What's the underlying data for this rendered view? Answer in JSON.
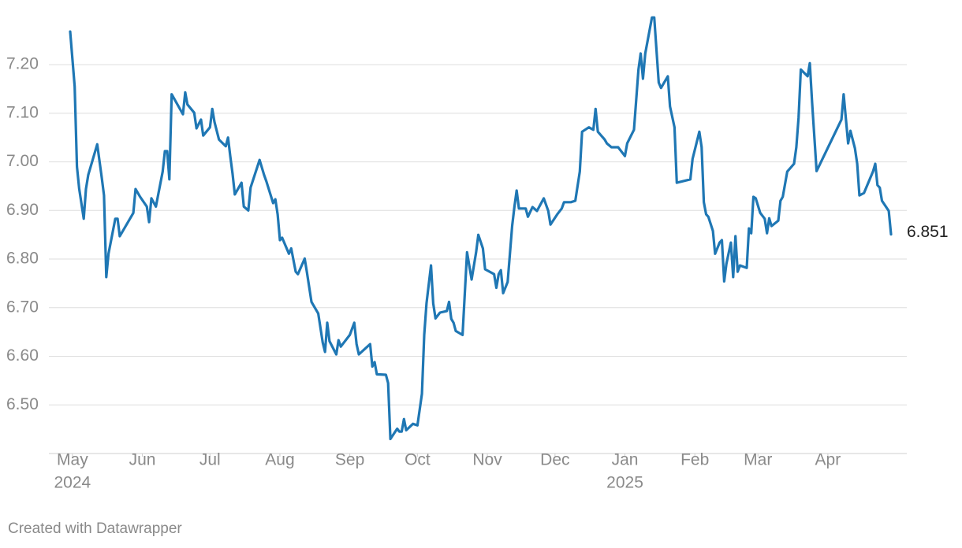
{
  "chart_data": {
    "type": "line",
    "color": "#1f77b4",
    "grid": true,
    "footer": "Created with Datawrapper",
    "xlim": [
      0,
      371
    ],
    "xticks": [
      {
        "value": 1,
        "label": "May"
      },
      {
        "value": 32,
        "label": "Jun"
      },
      {
        "value": 62,
        "label": "Jul"
      },
      {
        "value": 93,
        "label": "Aug"
      },
      {
        "value": 124,
        "label": "Sep"
      },
      {
        "value": 154,
        "label": "Oct"
      },
      {
        "value": 185,
        "label": "Nov"
      },
      {
        "value": 215,
        "label": "Dec"
      },
      {
        "value": 246,
        "label": "Jan"
      },
      {
        "value": 277,
        "label": "Feb"
      },
      {
        "value": 305,
        "label": "Mar"
      },
      {
        "value": 336,
        "label": "Apr"
      }
    ],
    "year_labels": [
      {
        "value": 1,
        "label": "2024"
      },
      {
        "value": 246,
        "label": "2025"
      }
    ],
    "ylim": [
      6.4,
      7.32
    ],
    "yticks": [
      {
        "value": 6.5,
        "label": "6.50"
      },
      {
        "value": 6.6,
        "label": "6.60"
      },
      {
        "value": 6.7,
        "label": "6.70"
      },
      {
        "value": 6.8,
        "label": "6.80"
      },
      {
        "value": 6.9,
        "label": "6.90"
      },
      {
        "value": 7.0,
        "label": "7.00"
      },
      {
        "value": 7.1,
        "label": "7.10"
      },
      {
        "value": 7.2,
        "label": "7.20"
      }
    ],
    "x": [
      0,
      2,
      3,
      4,
      6,
      7,
      8,
      12,
      14,
      15,
      16,
      17,
      20,
      21,
      22,
      28,
      29,
      31,
      34,
      35,
      36,
      38,
      41,
      42,
      43,
      44,
      45,
      50,
      51,
      52,
      55,
      56,
      58,
      59,
      62,
      63,
      64,
      66,
      69,
      70,
      71,
      72,
      73,
      76,
      77,
      79,
      80,
      84,
      86,
      87,
      90,
      91,
      92,
      93,
      94,
      97,
      98,
      100,
      101,
      104,
      105,
      107,
      110,
      112,
      113,
      114,
      115,
      118,
      119,
      120,
      124,
      126,
      127,
      128,
      133,
      134,
      135,
      136,
      140,
      141,
      142,
      145,
      146,
      147,
      148,
      149,
      152,
      154,
      156,
      157,
      158,
      160,
      161,
      162,
      164,
      167,
      168,
      169,
      170,
      171,
      174,
      176,
      178,
      180,
      181,
      183,
      184,
      188,
      189,
      190,
      191,
      192,
      194,
      196,
      197,
      198,
      199,
      202,
      203,
      205,
      207,
      210,
      212,
      213,
      216,
      218,
      219,
      222,
      224,
      226,
      227,
      230,
      232,
      233,
      234,
      237,
      238,
      240,
      243,
      246,
      247,
      250,
      252,
      253,
      254,
      255,
      258,
      259,
      261,
      262,
      265,
      266,
      268,
      269,
      275,
      276,
      279,
      280,
      281,
      282,
      283,
      285,
      286,
      288,
      289,
      290,
      291,
      293,
      294,
      295,
      296,
      297,
      300,
      301,
      302,
      303,
      304,
      306,
      308,
      309,
      310,
      311,
      314,
      315,
      316,
      318,
      321,
      322,
      323,
      324,
      327,
      328,
      329,
      331,
      342,
      343,
      345,
      346,
      348,
      349,
      350,
      352,
      356,
      357,
      358,
      359,
      360,
      363,
      364
    ],
    "values": [
      7.268,
      7.155,
      6.99,
      6.945,
      6.883,
      6.944,
      6.973,
      7.036,
      6.968,
      6.931,
      6.763,
      6.811,
      6.883,
      6.883,
      6.847,
      6.895,
      6.944,
      6.928,
      6.908,
      6.876,
      6.925,
      6.908,
      6.98,
      7.022,
      7.022,
      6.964,
      7.139,
      7.098,
      7.143,
      7.118,
      7.101,
      7.069,
      7.087,
      7.054,
      7.071,
      7.109,
      7.082,
      7.046,
      7.032,
      7.05,
      7.012,
      6.976,
      6.933,
      6.957,
      6.908,
      6.9,
      6.947,
      7.004,
      6.973,
      6.96,
      6.915,
      6.923,
      6.892,
      6.839,
      6.844,
      6.811,
      6.822,
      6.774,
      6.769,
      6.801,
      6.772,
      6.712,
      6.688,
      6.628,
      6.609,
      6.669,
      6.631,
      6.604,
      6.633,
      6.62,
      6.644,
      6.669,
      6.625,
      6.604,
      6.625,
      6.579,
      6.588,
      6.563,
      6.562,
      6.545,
      6.43,
      6.451,
      6.445,
      6.445,
      6.471,
      6.448,
      6.461,
      6.458,
      6.523,
      6.644,
      6.709,
      6.787,
      6.709,
      6.678,
      6.69,
      6.693,
      6.712,
      6.677,
      6.669,
      6.652,
      6.644,
      6.814,
      6.758,
      6.814,
      6.85,
      6.822,
      6.779,
      6.769,
      6.741,
      6.769,
      6.777,
      6.73,
      6.753,
      6.868,
      6.908,
      6.941,
      6.904,
      6.904,
      6.887,
      6.907,
      6.899,
      6.925,
      6.899,
      6.871,
      6.892,
      6.904,
      6.917,
      6.917,
      6.92,
      6.98,
      7.062,
      7.071,
      7.066,
      7.109,
      7.062,
      7.046,
      7.038,
      7.03,
      7.03,
      7.012,
      7.038,
      7.066,
      7.19,
      7.223,
      7.171,
      7.223,
      7.297,
      7.297,
      7.163,
      7.152,
      7.176,
      7.114,
      7.071,
      6.957,
      6.964,
      7.006,
      7.062,
      7.03,
      6.917,
      6.892,
      6.887,
      6.858,
      6.811,
      6.834,
      6.839,
      6.754,
      6.79,
      6.834,
      6.763,
      6.847,
      6.774,
      6.787,
      6.782,
      6.863,
      6.853,
      6.928,
      6.925,
      6.895,
      6.883,
      6.853,
      6.884,
      6.868,
      6.879,
      6.92,
      6.928,
      6.98,
      6.996,
      7.03,
      7.09,
      7.19,
      7.176,
      7.203,
      7.122,
      6.981,
      7.087,
      7.139,
      7.038,
      7.064,
      7.028,
      6.996,
      6.931,
      6.936,
      6.98,
      6.996,
      6.952,
      6.947,
      6.92,
      6.899,
      6.851
    ]
  }
}
